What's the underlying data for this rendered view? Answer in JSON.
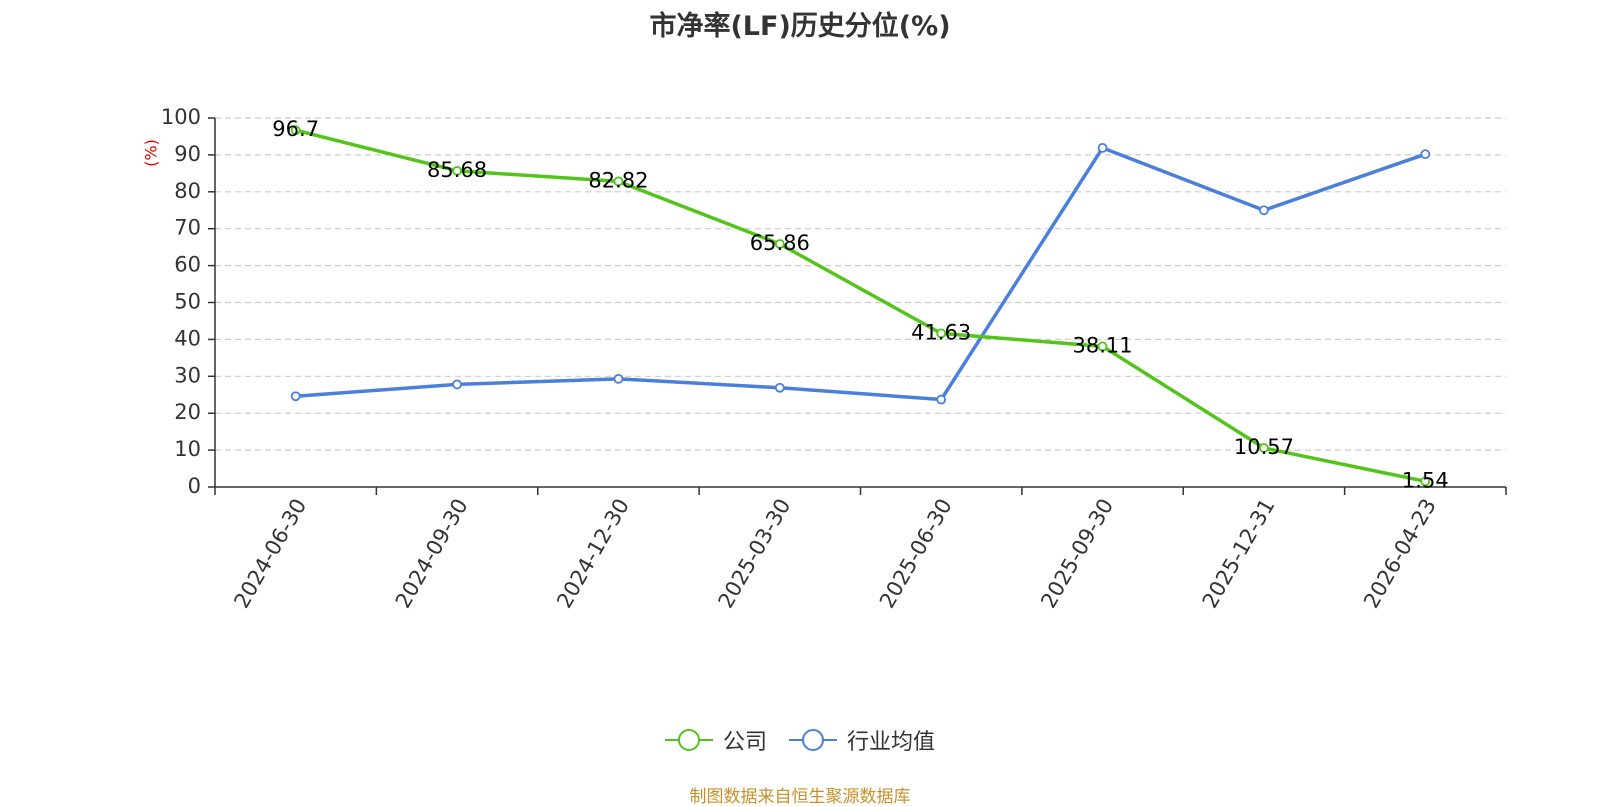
{
  "chart_data": {
    "type": "line",
    "title": "市净率(LF)历史分位(%)",
    "ylabel": "(%)",
    "categories": [
      "2024-06-30",
      "2024-09-30",
      "2024-12-30",
      "2025-03-30",
      "2025-06-30",
      "2025-09-30",
      "2025-12-31",
      "2026-04-23"
    ],
    "ylim": [
      0,
      100
    ],
    "yticks": [
      0,
      10,
      20,
      30,
      40,
      50,
      60,
      70,
      80,
      90,
      100
    ],
    "grid": true,
    "legend_position": "bottom",
    "series": [
      {
        "name": "公司",
        "color": "#52c41a",
        "values": [
          96.7,
          85.68,
          82.82,
          65.86,
          41.63,
          38.11,
          10.57,
          1.54
        ],
        "labels": [
          "96.7",
          "85.68",
          "82.82",
          "65.86",
          "41.63",
          "38.11",
          "10.57",
          "1.54"
        ],
        "show_labels": true
      },
      {
        "name": "行业均值",
        "color": "#4a7fdc",
        "values": [
          24.6,
          27.8,
          29.3,
          26.9,
          23.7,
          91.9,
          75.0,
          90.2
        ],
        "show_labels": false
      }
    ]
  },
  "footer": {
    "source": "制图数据来自恒生聚源数据库"
  }
}
